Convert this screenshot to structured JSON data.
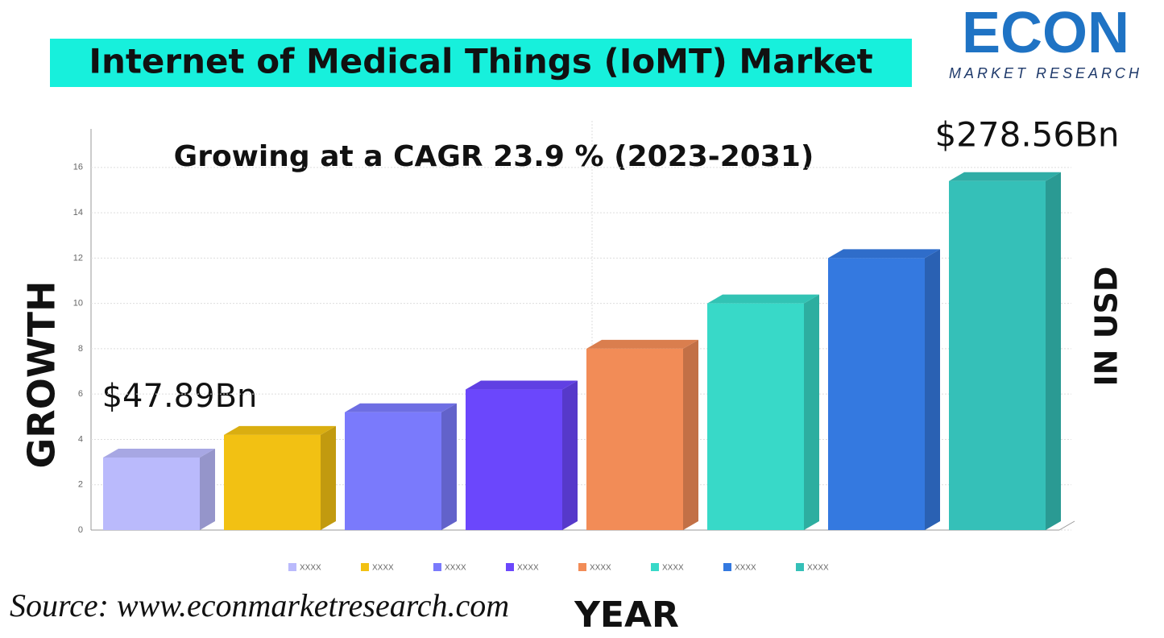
{
  "chart_data": {
    "type": "bar3d",
    "title": "Internet of Medical Things (IoMT) Market",
    "subtitle": "Growing at a CAGR 23.9 % (2023-2031)",
    "annotations": [
      "$47.89Bn",
      "$278.56Bn"
    ],
    "y_label": "GROWTH",
    "y2_label": "IN USD",
    "x_label": "YEAR",
    "source": "Source:  www.econmarketresearch.com",
    "logo": {
      "name": "ECON",
      "tagline": "MARKET RESEARCH"
    },
    "categories": [
      "XXXX",
      "XXXX",
      "XXXX",
      "XXXX",
      "XXXX",
      "XXXX",
      "XXXX",
      "XXXX"
    ],
    "values": [
      3.2,
      4.2,
      5.2,
      6.2,
      8,
      10,
      12,
      15.4
    ],
    "colors": [
      "#babafc",
      "#f2c113",
      "#7a7afc",
      "#6b47fc",
      "#f28c57",
      "#38d9c8",
      "#3479e0",
      "#35c0b8"
    ],
    "ylim": [
      0,
      17.7
    ],
    "yticks": [
      0,
      2,
      4,
      6,
      8,
      10,
      12,
      14,
      16
    ],
    "grid": true
  }
}
